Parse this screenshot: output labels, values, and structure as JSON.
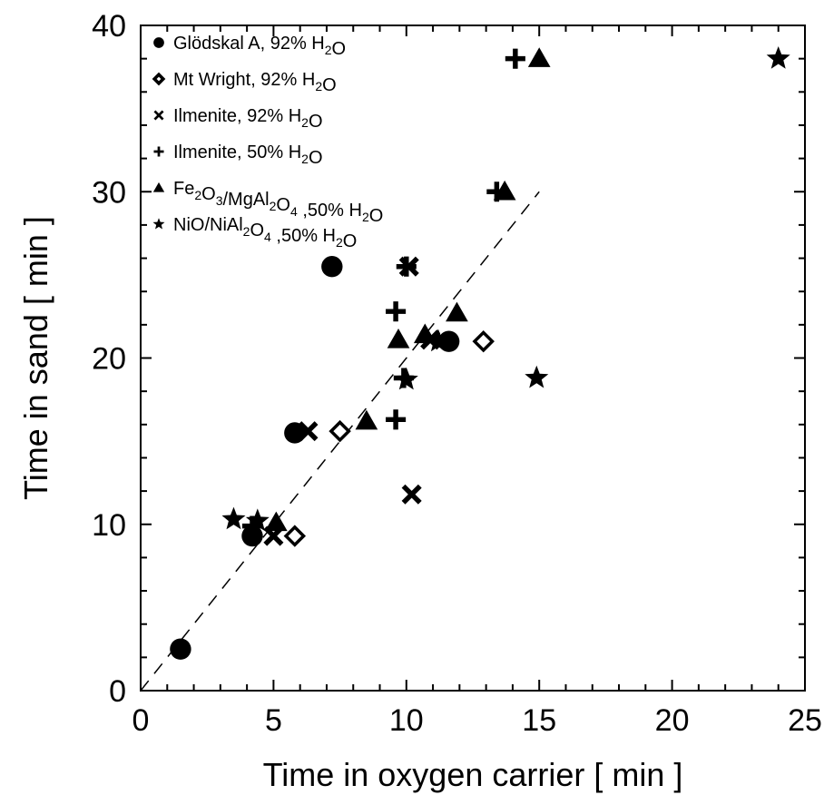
{
  "chart_data": {
    "type": "scatter",
    "xlabel": "Time in oxygen carrier [ min ]",
    "ylabel": "Time in sand [ min ]",
    "xlim": [
      0,
      25
    ],
    "ylim": [
      0,
      40
    ],
    "x_ticks": [
      "0",
      "5",
      "10",
      "15",
      "20",
      "25"
    ],
    "y_ticks": [
      "0",
      "10",
      "20",
      "30",
      "40"
    ],
    "grid": false,
    "legend_position": "top-left",
    "reference_line": {
      "style": "dashed",
      "points": [
        [
          0,
          0
        ],
        [
          15,
          30
        ]
      ]
    },
    "series": [
      {
        "name": "Glödskal A, 92% H2O",
        "legend_parts": [
          {
            "t": "Glödskal A, 92% H",
            "sub": false
          },
          {
            "t": "2",
            "sub": true
          },
          {
            "t": "O",
            "sub": false
          }
        ],
        "marker": "circle",
        "points": [
          [
            1.5,
            2.5
          ],
          [
            4.2,
            9.3
          ],
          [
            5.8,
            15.5
          ],
          [
            7.2,
            25.5
          ],
          [
            11.6,
            21.0
          ]
        ]
      },
      {
        "name": "Mt Wright, 92% H2O",
        "legend_parts": [
          {
            "t": "Mt Wright, 92% H",
            "sub": false
          },
          {
            "t": "2",
            "sub": true
          },
          {
            "t": "O",
            "sub": false
          }
        ],
        "marker": "diamond-open",
        "points": [
          [
            5.8,
            9.3
          ],
          [
            7.5,
            15.6
          ],
          [
            12.9,
            21.0
          ]
        ]
      },
      {
        "name": "Ilmenite, 92% H2O",
        "legend_parts": [
          {
            "t": "Ilmenite, 92% H",
            "sub": false
          },
          {
            "t": "2",
            "sub": true
          },
          {
            "t": "O",
            "sub": false
          }
        ],
        "marker": "x",
        "points": [
          [
            5.0,
            9.3
          ],
          [
            6.3,
            15.6
          ],
          [
            10.2,
            11.8
          ],
          [
            10.1,
            25.5
          ],
          [
            10.9,
            21.1
          ]
        ]
      },
      {
        "name": "Ilmenite, 50% H2O",
        "legend_parts": [
          {
            "t": "Ilmenite, 50% H",
            "sub": false
          },
          {
            "t": "2",
            "sub": true
          },
          {
            "t": "O",
            "sub": false
          }
        ],
        "marker": "plus",
        "points": [
          [
            4.2,
            9.9
          ],
          [
            9.6,
            16.3
          ],
          [
            9.6,
            22.8
          ],
          [
            13.4,
            30.0
          ],
          [
            14.1,
            38.0
          ],
          [
            9.9,
            18.8
          ],
          [
            10.0,
            25.5
          ]
        ]
      },
      {
        "name": "Fe2O3/MgAl2O4, 50% H2O",
        "legend_parts": [
          {
            "t": "Fe",
            "sub": false
          },
          {
            "t": "2",
            "sub": true
          },
          {
            "t": "O",
            "sub": false
          },
          {
            "t": "3",
            "sub": true
          },
          {
            "t": "/MgAl",
            "sub": false
          },
          {
            "t": "2",
            "sub": true
          },
          {
            "t": "O",
            "sub": false
          },
          {
            "t": "4",
            "sub": true
          },
          {
            "t": " ,50% H",
            "sub": false
          },
          {
            "t": "2",
            "sub": true
          },
          {
            "t": "O",
            "sub": false
          }
        ],
        "marker": "triangle",
        "points": [
          [
            5.1,
            10.1
          ],
          [
            8.5,
            16.2
          ],
          [
            9.7,
            21.1
          ],
          [
            11.9,
            22.7
          ],
          [
            13.7,
            30.0
          ],
          [
            15.0,
            38.0
          ],
          [
            10.7,
            21.4
          ]
        ]
      },
      {
        "name": "NiO/NiAl2O4, 50% H2O",
        "legend_parts": [
          {
            "t": "NiO/NiAl",
            "sub": false
          },
          {
            "t": "2",
            "sub": true
          },
          {
            "t": "O",
            "sub": false
          },
          {
            "t": "4",
            "sub": true
          },
          {
            "t": " ,50% H",
            "sub": false
          },
          {
            "t": "2",
            "sub": true
          },
          {
            "t": "O",
            "sub": false
          }
        ],
        "marker": "star",
        "points": [
          [
            3.5,
            10.3
          ],
          [
            4.4,
            10.2
          ],
          [
            10.0,
            18.7
          ],
          [
            11.2,
            21.0
          ],
          [
            14.9,
            18.8
          ],
          [
            24.0,
            38.0
          ]
        ]
      }
    ]
  }
}
